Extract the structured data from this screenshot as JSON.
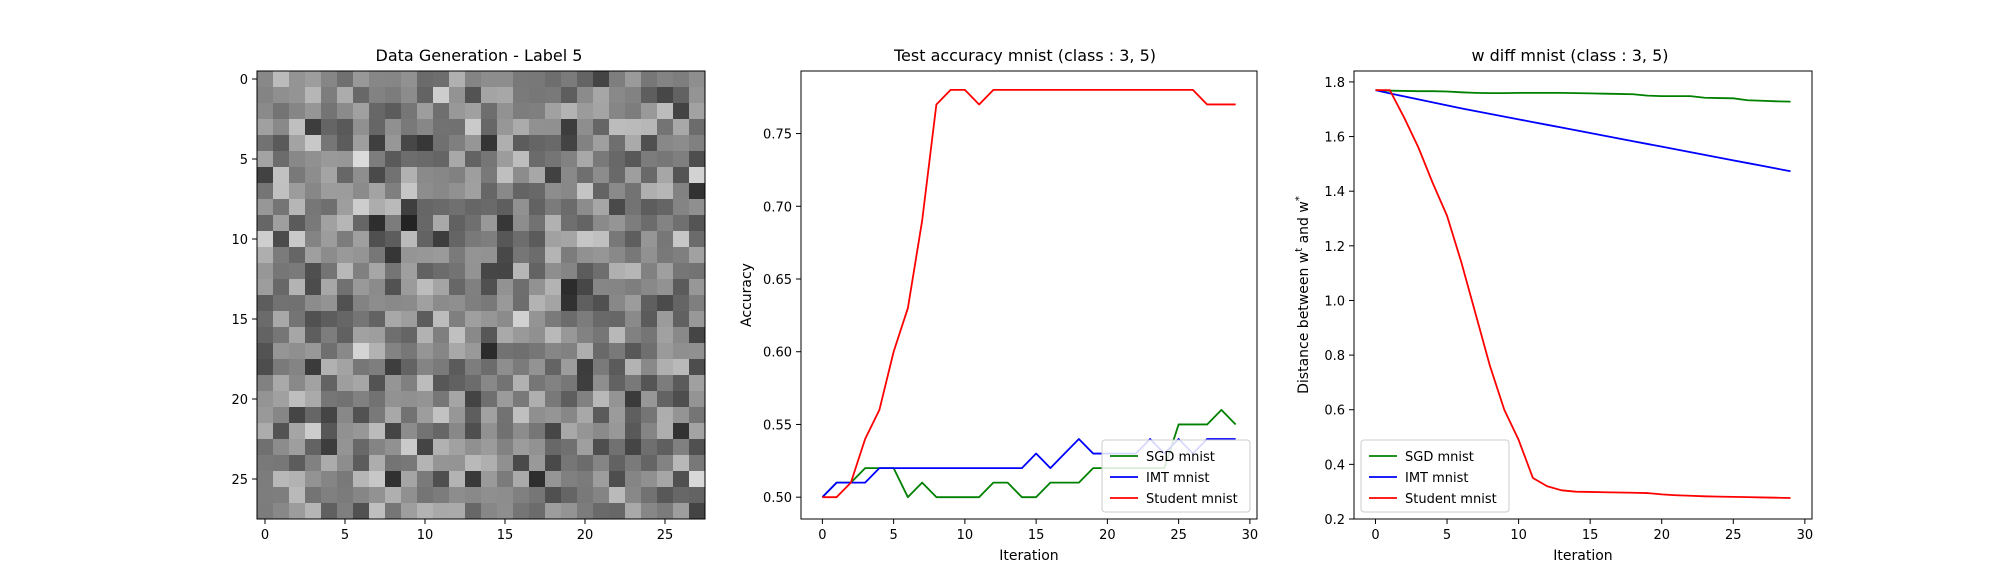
{
  "chart_data": [
    {
      "type": "heatmap",
      "title": "Data Generation - Label 5",
      "xlabel": "",
      "ylabel": "",
      "xticks": [
        "0",
        "5",
        "10",
        "15",
        "20",
        "25"
      ],
      "yticks": [
        "0",
        "5",
        "10",
        "15",
        "20",
        "25"
      ],
      "colormap": "gray",
      "grid_size": [
        28,
        28
      ],
      "xlim": [
        -0.5,
        27.5
      ],
      "ylim": [
        27.5,
        -0.5
      ]
    },
    {
      "type": "line",
      "title": "Test accuracy mnist (class : 3, 5)",
      "xlabel": "Iteration",
      "ylabel": "Accuracy",
      "xlim": [
        -1.5,
        30.5
      ],
      "ylim": [
        0.485,
        0.793
      ],
      "xticks": [
        "0",
        "5",
        "10",
        "15",
        "20",
        "25",
        "30"
      ],
      "yticks": [
        "0.50",
        "0.55",
        "0.60",
        "0.65",
        "0.70",
        "0.75"
      ],
      "grid": false,
      "legend_position": "bottom-right",
      "x": [
        0,
        1,
        2,
        3,
        4,
        5,
        6,
        7,
        8,
        9,
        10,
        11,
        12,
        13,
        14,
        15,
        16,
        17,
        18,
        19,
        20,
        21,
        22,
        23,
        24,
        25,
        26,
        27,
        28,
        29
      ],
      "series": [
        {
          "name": "SGD mnist",
          "color": "#008000",
          "values": [
            0.5,
            0.51,
            0.51,
            0.52,
            0.52,
            0.52,
            0.5,
            0.51,
            0.5,
            0.5,
            0.5,
            0.5,
            0.51,
            0.51,
            0.5,
            0.5,
            0.51,
            0.51,
            0.51,
            0.52,
            0.52,
            0.52,
            0.52,
            0.52,
            0.52,
            0.55,
            0.55,
            0.55,
            0.56,
            0.55
          ]
        },
        {
          "name": "IMT mnist",
          "color": "#0000ff",
          "values": [
            0.5,
            0.51,
            0.51,
            0.51,
            0.52,
            0.52,
            0.52,
            0.52,
            0.52,
            0.52,
            0.52,
            0.52,
            0.52,
            0.52,
            0.52,
            0.53,
            0.52,
            0.53,
            0.54,
            0.53,
            0.53,
            0.53,
            0.53,
            0.54,
            0.53,
            0.54,
            0.53,
            0.54,
            0.54,
            0.54
          ]
        },
        {
          "name": "Student mnist",
          "color": "#ff0000",
          "values": [
            0.5,
            0.5,
            0.51,
            0.54,
            0.56,
            0.6,
            0.63,
            0.69,
            0.77,
            0.78,
            0.78,
            0.77,
            0.78,
            0.78,
            0.78,
            0.78,
            0.78,
            0.78,
            0.78,
            0.78,
            0.78,
            0.78,
            0.78,
            0.78,
            0.78,
            0.78,
            0.78,
            0.77,
            0.77,
            0.77
          ]
        }
      ]
    },
    {
      "type": "line",
      "title": "w diff mnist (class : 3, 5)",
      "xlabel": "Iteration",
      "ylabel": "Distance between w",
      "ylabel_sup1": "t",
      "ylabel_mid": " and w",
      "ylabel_sup2": "*",
      "xlim": [
        -1.5,
        30.5
      ],
      "ylim": [
        0.2,
        1.84
      ],
      "xticks": [
        "0",
        "5",
        "10",
        "15",
        "20",
        "25",
        "30"
      ],
      "yticks": [
        "0.2",
        "0.4",
        "0.6",
        "0.8",
        "1.0",
        "1.2",
        "1.4",
        "1.6",
        "1.8"
      ],
      "grid": false,
      "legend_position": "bottom-left",
      "x": [
        0,
        1,
        2,
        3,
        4,
        5,
        6,
        7,
        8,
        9,
        10,
        11,
        12,
        13,
        14,
        15,
        16,
        17,
        18,
        19,
        20,
        21,
        22,
        23,
        24,
        25,
        26,
        27,
        28,
        29
      ],
      "series": [
        {
          "name": "SGD mnist",
          "color": "#008000",
          "values": [
            1.77,
            1.768,
            1.767,
            1.766,
            1.766,
            1.765,
            1.762,
            1.76,
            1.759,
            1.759,
            1.76,
            1.76,
            1.76,
            1.76,
            1.759,
            1.758,
            1.757,
            1.756,
            1.755,
            1.75,
            1.748,
            1.748,
            1.748,
            1.742,
            1.741,
            1.74,
            1.733,
            1.731,
            1.729,
            1.728
          ]
        },
        {
          "name": "IMT mnist",
          "color": "#0000ff",
          "values": [
            1.77,
            1.758,
            1.747,
            1.736,
            1.725,
            1.714,
            1.703,
            1.693,
            1.683,
            1.673,
            1.663,
            1.653,
            1.643,
            1.633,
            1.623,
            1.613,
            1.603,
            1.593,
            1.583,
            1.573,
            1.563,
            1.553,
            1.543,
            1.533,
            1.523,
            1.513,
            1.503,
            1.493,
            1.483,
            1.473
          ]
        },
        {
          "name": "Student mnist",
          "color": "#ff0000",
          "values": [
            1.77,
            1.77,
            1.67,
            1.56,
            1.43,
            1.31,
            1.14,
            0.95,
            0.76,
            0.6,
            0.49,
            0.35,
            0.32,
            0.305,
            0.3,
            0.299,
            0.298,
            0.297,
            0.296,
            0.295,
            0.29,
            0.287,
            0.285,
            0.283,
            0.282,
            0.281,
            0.28,
            0.279,
            0.278,
            0.277
          ]
        }
      ]
    }
  ]
}
